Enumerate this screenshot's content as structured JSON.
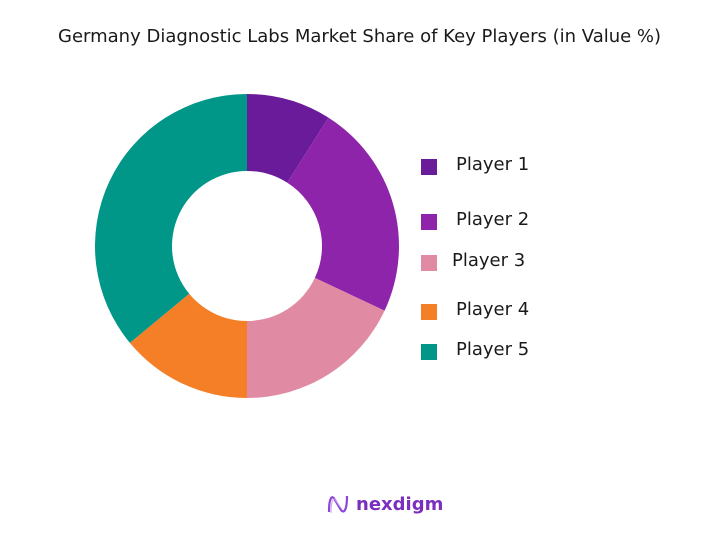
{
  "chart_data": {
    "type": "pie",
    "subtype": "donut",
    "title": " Germany Diagnostic Labs Market Share of Key Players (in Value %)",
    "categories": [
      "Player 1",
      "Player 2",
      "Player 3",
      "Player 4",
      "Player 5"
    ],
    "values": [
      9,
      23,
      18,
      14,
      36
    ],
    "colors": [
      "#6a1b9a",
      "#8e24aa",
      "#e08aa4",
      "#f57f26",
      "#009688"
    ],
    "legend_position": "right"
  },
  "branding": {
    "logo_text": "nexdigm"
  }
}
